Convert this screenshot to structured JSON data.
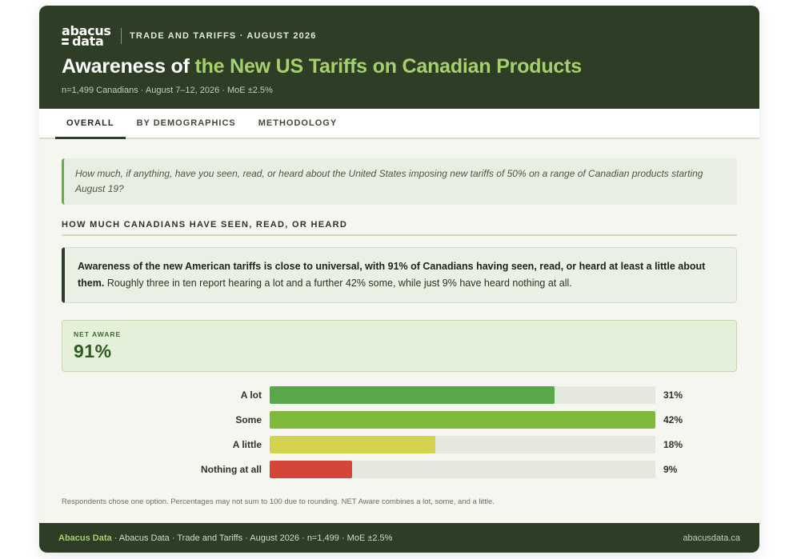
{
  "header": {
    "logo_line1": "abacus",
    "logo_line2": "data",
    "kicker": "TRADE AND TARIFFS · AUGUST 2026",
    "title_prefix": "Awareness of ",
    "title_highlight": "the New US Tariffs on Canadian Products",
    "subline": "n=1,499 Canadians · August 7–12, 2026 · MoE ±2.5%"
  },
  "tabs": [
    {
      "label": "OVERALL",
      "active": true
    },
    {
      "label": "BY DEMOGRAPHICS",
      "active": false
    },
    {
      "label": "METHODOLOGY",
      "active": false
    }
  ],
  "question": "How much, if anything, have you seen, read, or heard about the United States imposing new tariffs of 50% on a range of Canadian products starting August 19?",
  "section_heading": "HOW MUCH CANADIANS HAVE SEEN, READ, OR HEARD",
  "summary": {
    "bold": "Awareness of the new American tariffs is close to universal, with 91% of Canadians having seen, read, or heard at least a little about them.",
    "rest": " Roughly three in ten report hearing a lot and a further 42% some, while just 9% have heard nothing at all."
  },
  "net_aware": {
    "label": "NET AWARE",
    "value": "91%"
  },
  "chart_data": {
    "type": "bar",
    "orientation": "horizontal",
    "categories": [
      "A lot",
      "Some",
      "A little",
      "Nothing at all"
    ],
    "values": [
      31,
      42,
      18,
      9
    ],
    "value_labels": [
      "31%",
      "42%",
      "18%",
      "9%"
    ],
    "colors": [
      "#5aa64a",
      "#7fba3f",
      "#d3d24e",
      "#d4453a"
    ],
    "xlim": [
      0,
      42
    ],
    "grid": false,
    "legend": "none"
  },
  "note": "Respondents chose one option. Percentages may not sum to 100 due to rounding. NET Aware combines a lot, some, and a little.",
  "footer": {
    "brand": "Abacus Data",
    "left_rest": " · Abacus Data · Trade and Tariffs · August 2026 · n=1,499 · MoE ±2.5%",
    "right": "abacusdata.ca"
  }
}
